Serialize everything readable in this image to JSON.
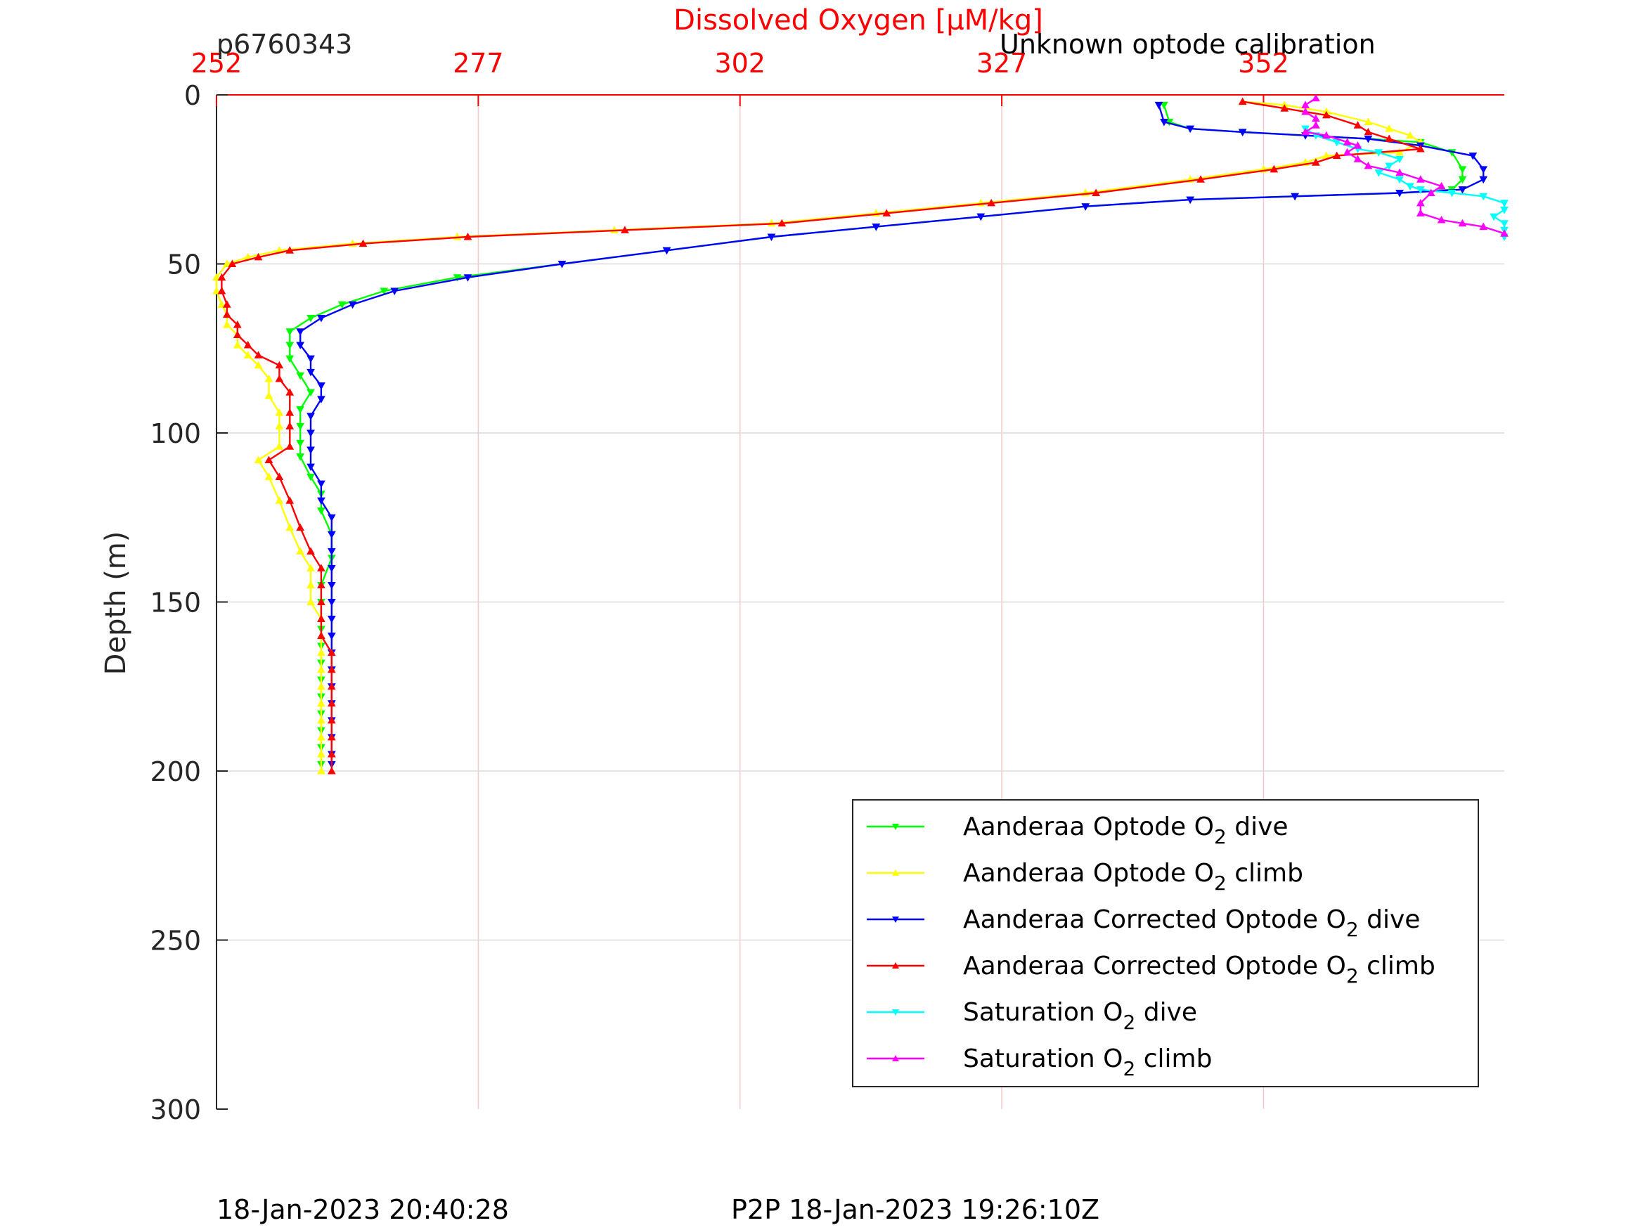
{
  "chart_data": {
    "type": "line",
    "title": "Dissolved Oxygen [μM/kg]",
    "top_left_label": "p6760343",
    "top_right_label": "Unknown optode calibration",
    "ylabel": "Depth (m)",
    "xlim": [
      252,
      375
    ],
    "ylim": [
      0,
      300
    ],
    "y_reversed": true,
    "x_ticks": [
      252,
      277,
      302,
      327,
      352
    ],
    "x_tick_labels": [
      "252",
      "277",
      "302",
      "327",
      "352"
    ],
    "y_ticks": [
      0,
      50,
      100,
      150,
      200,
      250,
      300
    ],
    "y_tick_labels": [
      "0",
      "50",
      "100",
      "150",
      "200",
      "250",
      "300"
    ],
    "grid": true,
    "legend_position": "lower-right",
    "series": [
      {
        "name": "Aanderaa Optode O₂ dive",
        "legend_main": "Aanderaa Optode O",
        "legend_tail": " dive",
        "color": "#00ff00",
        "marker": "down",
        "points": [
          [
            342.5,
            3
          ],
          [
            343,
            8
          ],
          [
            345,
            10
          ],
          [
            350,
            11
          ],
          [
            356,
            12
          ],
          [
            362,
            13
          ],
          [
            367,
            14
          ],
          [
            370,
            17
          ],
          [
            371,
            22
          ],
          [
            371,
            25
          ],
          [
            370,
            28
          ],
          [
            365,
            29
          ],
          [
            355,
            30
          ],
          [
            345,
            31
          ],
          [
            335,
            33
          ],
          [
            325,
            36
          ],
          [
            315,
            39
          ],
          [
            305,
            42
          ],
          [
            295,
            46
          ],
          [
            285,
            50
          ],
          [
            275,
            54
          ],
          [
            268,
            58
          ],
          [
            264,
            62
          ],
          [
            261,
            66
          ],
          [
            259,
            70
          ],
          [
            259,
            74
          ],
          [
            259,
            78
          ],
          [
            260,
            83
          ],
          [
            261,
            88
          ],
          [
            260,
            93
          ],
          [
            260,
            98
          ],
          [
            260,
            103
          ],
          [
            260,
            107
          ],
          [
            261,
            113
          ],
          [
            262,
            118
          ],
          [
            262,
            123
          ],
          [
            263,
            130
          ],
          [
            263,
            137
          ],
          [
            262,
            145
          ],
          [
            262,
            150
          ],
          [
            262,
            158
          ],
          [
            262,
            163
          ],
          [
            262,
            168
          ],
          [
            262,
            173
          ],
          [
            262,
            178
          ],
          [
            262,
            183
          ],
          [
            262,
            188
          ],
          [
            262,
            193
          ],
          [
            262,
            198
          ]
        ]
      },
      {
        "name": "Aanderaa Optode O₂ climb",
        "legend_main": "Aanderaa Optode O",
        "legend_tail": " climb",
        "color": "#ffff00",
        "marker": "up",
        "points": [
          [
            262,
            200
          ],
          [
            262,
            195
          ],
          [
            262,
            190
          ],
          [
            262,
            185
          ],
          [
            262,
            180
          ],
          [
            262,
            175
          ],
          [
            262,
            170
          ],
          [
            262,
            165
          ],
          [
            262,
            160
          ],
          [
            262,
            155
          ],
          [
            261,
            150
          ],
          [
            261,
            145
          ],
          [
            261,
            140
          ],
          [
            260,
            135
          ],
          [
            259,
            128
          ],
          [
            258,
            120
          ],
          [
            257,
            113
          ],
          [
            256,
            108
          ],
          [
            258,
            104
          ],
          [
            258,
            98
          ],
          [
            258,
            94
          ],
          [
            257,
            89
          ],
          [
            257,
            84
          ],
          [
            256,
            80
          ],
          [
            255,
            77
          ],
          [
            254,
            74
          ],
          [
            254,
            71
          ],
          [
            253,
            68
          ],
          [
            253,
            65
          ],
          [
            252.5,
            62
          ],
          [
            252,
            58
          ],
          [
            252,
            54
          ],
          [
            253,
            50
          ],
          [
            255,
            48
          ],
          [
            258,
            46
          ],
          [
            265,
            44
          ],
          [
            275,
            42
          ],
          [
            290,
            40
          ],
          [
            305,
            38
          ],
          [
            315,
            35
          ],
          [
            325,
            32
          ],
          [
            335,
            29
          ],
          [
            345,
            25
          ],
          [
            352,
            22
          ],
          [
            356,
            20
          ],
          [
            358,
            18
          ],
          [
            365,
            17
          ],
          [
            367,
            14
          ],
          [
            366,
            12
          ],
          [
            364,
            10
          ],
          [
            362,
            8
          ],
          [
            358,
            5
          ],
          [
            354,
            3
          ],
          [
            350,
            2
          ]
        ]
      },
      {
        "name": "Aanderaa Corrected Optode O₂ dive",
        "legend_main": "Aanderaa Corrected Optode O",
        "legend_tail": " dive",
        "color": "#0000ff",
        "marker": "down",
        "points": [
          [
            342,
            3
          ],
          [
            342.5,
            8
          ],
          [
            345,
            10
          ],
          [
            350,
            11
          ],
          [
            356,
            12
          ],
          [
            362,
            13
          ],
          [
            367,
            15
          ],
          [
            372,
            18
          ],
          [
            373,
            22
          ],
          [
            373,
            25
          ],
          [
            371,
            28
          ],
          [
            365,
            29
          ],
          [
            355,
            30
          ],
          [
            345,
            31
          ],
          [
            335,
            33
          ],
          [
            325,
            36
          ],
          [
            315,
            39
          ],
          [
            305,
            42
          ],
          [
            295,
            46
          ],
          [
            285,
            50
          ],
          [
            276,
            54
          ],
          [
            269,
            58
          ],
          [
            265,
            62
          ],
          [
            262,
            66
          ],
          [
            260,
            70
          ],
          [
            260,
            74
          ],
          [
            261,
            78
          ],
          [
            261,
            82
          ],
          [
            262,
            86
          ],
          [
            262,
            90
          ],
          [
            261,
            95
          ],
          [
            261,
            100
          ],
          [
            261,
            105
          ],
          [
            261,
            110
          ],
          [
            262,
            115
          ],
          [
            262,
            120
          ],
          [
            263,
            125
          ],
          [
            263,
            130
          ],
          [
            263,
            135
          ],
          [
            263,
            140
          ],
          [
            263,
            145
          ],
          [
            263,
            150
          ],
          [
            263,
            155
          ],
          [
            263,
            160
          ],
          [
            263,
            165
          ],
          [
            263,
            170
          ],
          [
            263,
            175
          ],
          [
            263,
            180
          ],
          [
            263,
            185
          ],
          [
            263,
            190
          ],
          [
            263,
            195
          ],
          [
            263,
            198
          ]
        ]
      },
      {
        "name": "Aanderaa Corrected Optode O₂ climb",
        "legend_main": "Aanderaa Corrected Optode O",
        "legend_tail": " climb",
        "color": "#ff0000",
        "marker": "up",
        "points": [
          [
            263,
            200
          ],
          [
            263,
            195
          ],
          [
            263,
            190
          ],
          [
            263,
            185
          ],
          [
            263,
            180
          ],
          [
            263,
            175
          ],
          [
            263,
            170
          ],
          [
            263,
            165
          ],
          [
            262,
            160
          ],
          [
            262,
            155
          ],
          [
            262,
            150
          ],
          [
            262,
            145
          ],
          [
            262,
            140
          ],
          [
            261,
            135
          ],
          [
            260,
            128
          ],
          [
            259,
            120
          ],
          [
            258,
            113
          ],
          [
            257,
            108
          ],
          [
            259,
            104
          ],
          [
            259,
            98
          ],
          [
            259,
            94
          ],
          [
            259,
            88
          ],
          [
            258,
            84
          ],
          [
            258,
            80
          ],
          [
            256,
            77
          ],
          [
            255,
            74
          ],
          [
            254,
            71
          ],
          [
            254,
            68
          ],
          [
            253,
            65
          ],
          [
            253,
            62
          ],
          [
            252.5,
            58
          ],
          [
            252.5,
            54
          ],
          [
            253.5,
            50
          ],
          [
            256,
            48
          ],
          [
            259,
            46
          ],
          [
            266,
            44
          ],
          [
            276,
            42
          ],
          [
            291,
            40
          ],
          [
            306,
            38
          ],
          [
            316,
            35
          ],
          [
            326,
            32
          ],
          [
            336,
            29
          ],
          [
            346,
            25
          ],
          [
            353,
            22
          ],
          [
            357,
            20
          ],
          [
            359,
            18
          ],
          [
            367,
            16
          ],
          [
            364,
            13
          ],
          [
            362,
            11
          ],
          [
            361,
            9
          ],
          [
            358,
            6
          ],
          [
            354,
            4
          ],
          [
            350,
            2
          ]
        ]
      },
      {
        "name": "Saturation O₂ dive",
        "legend_main": "Saturation O",
        "legend_tail": " dive",
        "color": "#00ffff",
        "marker": "down",
        "points": [
          [
            356,
            10
          ],
          [
            357,
            12
          ],
          [
            359,
            14
          ],
          [
            361,
            16
          ],
          [
            363,
            17
          ],
          [
            365,
            19
          ],
          [
            364,
            21
          ],
          [
            363,
            23
          ],
          [
            365,
            25
          ],
          [
            366,
            27
          ],
          [
            367,
            28
          ],
          [
            370,
            29
          ],
          [
            373,
            30
          ],
          [
            375,
            32
          ],
          [
            375,
            34
          ],
          [
            374,
            36
          ],
          [
            375,
            38
          ],
          [
            375,
            40
          ],
          [
            375,
            42
          ]
        ]
      },
      {
        "name": "Saturation O₂ climb",
        "legend_main": "Saturation O",
        "legend_tail": " climb",
        "color": "#ff00ff",
        "marker": "up",
        "points": [
          [
            375,
            41
          ],
          [
            373,
            39
          ],
          [
            371,
            38
          ],
          [
            369,
            37
          ],
          [
            367,
            35
          ],
          [
            367,
            32
          ],
          [
            368,
            29
          ],
          [
            369,
            27
          ],
          [
            367,
            25
          ],
          [
            365,
            23
          ],
          [
            362,
            21
          ],
          [
            361,
            19
          ],
          [
            360,
            17
          ],
          [
            361,
            15
          ],
          [
            360,
            14
          ],
          [
            358,
            12
          ],
          [
            356,
            11
          ],
          [
            357,
            9
          ],
          [
            357,
            7
          ],
          [
            356,
            5
          ],
          [
            356,
            3
          ],
          [
            357,
            1
          ]
        ]
      }
    ]
  },
  "footer": {
    "left": "18-Jan-2023 20:40:28",
    "center": "P2P 18-Jan-2023 19:26:10Z"
  }
}
